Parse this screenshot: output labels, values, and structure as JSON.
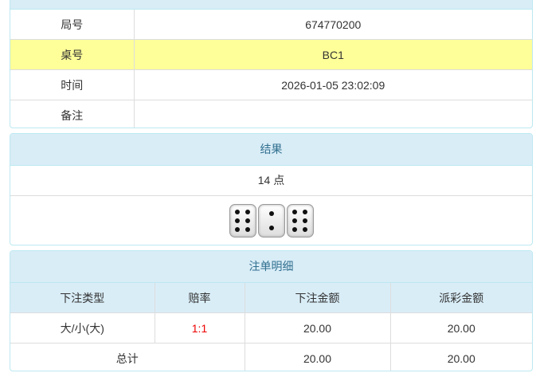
{
  "info": {
    "rows": [
      {
        "label": "局号",
        "value": "674770200"
      },
      {
        "label": "桌号",
        "value": "BC1"
      },
      {
        "label": "时间",
        "value": "2026-01-05 23:02:09"
      },
      {
        "label": "备注",
        "value": ""
      }
    ]
  },
  "result": {
    "title": "结果",
    "points": "14 点",
    "dice": [
      6,
      2,
      6
    ],
    "badge": "i"
  },
  "bets": {
    "title": "注单明细",
    "headers": [
      "下注类型",
      "赔率",
      "下注金额",
      "派彩金额"
    ],
    "rows": [
      {
        "type": "大/小(大)",
        "odds": "1:1",
        "amount": "20.00",
        "payout": "20.00"
      }
    ],
    "total": {
      "label": "总计",
      "amount": "20.00",
      "payout": "20.00"
    }
  }
}
